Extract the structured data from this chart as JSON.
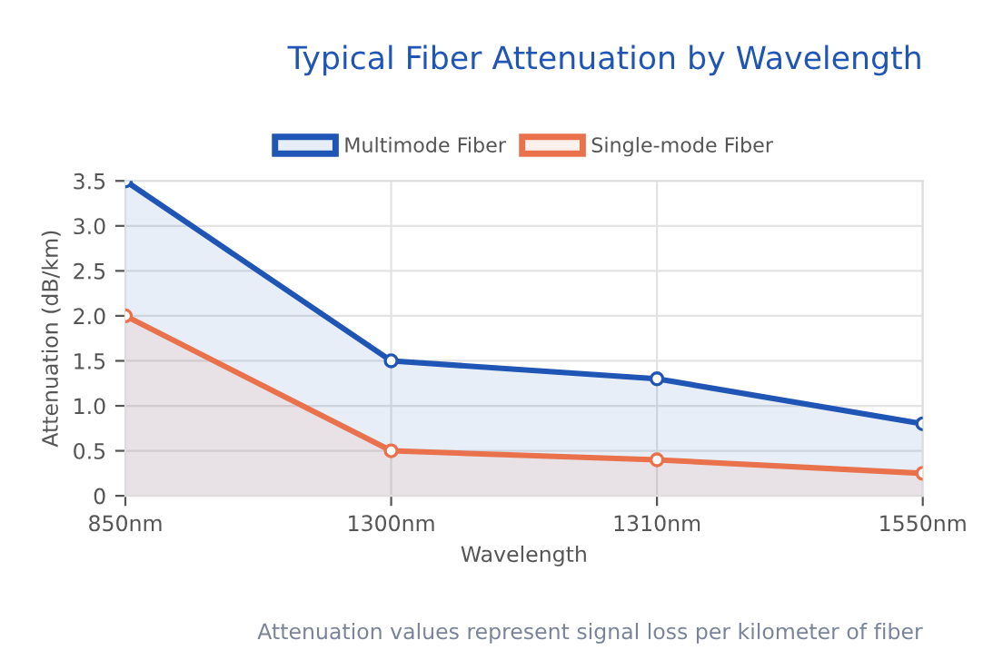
{
  "chart_data": {
    "type": "area",
    "title": "Typical Fiber Attenuation by Wavelength",
    "xlabel": "Wavelength",
    "ylabel": "Attenuation (dB/km)",
    "categories": [
      "850nm",
      "1300nm",
      "1310nm",
      "1550nm"
    ],
    "series": [
      {
        "name": "Multimode Fiber",
        "color": "#1f55b5",
        "values": [
          3.5,
          1.5,
          1.3,
          0.8
        ]
      },
      {
        "name": "Single-mode Fiber",
        "color": "#e9714b",
        "values": [
          2.0,
          0.5,
          0.4,
          0.25
        ]
      }
    ],
    "ylim": [
      0,
      3.5
    ],
    "yticks": [
      0,
      0.5,
      {
        "value": 1.0,
        "label": "1.0"
      },
      1.5,
      {
        "value": 2.0,
        "label": "2.0"
      },
      2.5,
      {
        "value": 3.0,
        "label": "3.0"
      },
      3.5
    ],
    "grid": true,
    "legend": "top",
    "marker": "circle",
    "line_style": "solid",
    "annotations": [
      "Attenuation values represent signal loss per kilometer of fiber"
    ]
  }
}
